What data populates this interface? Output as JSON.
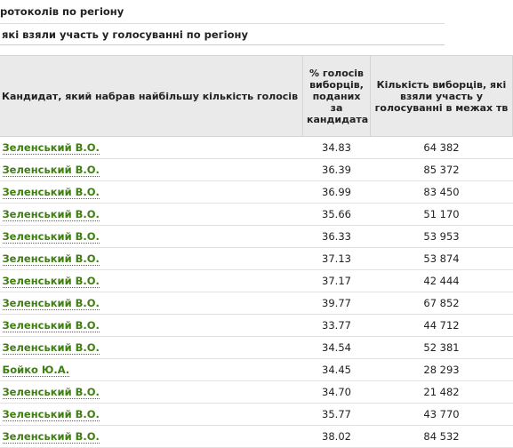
{
  "header": {
    "title": "ротоколів по регіону",
    "subtitle": "які взяли участь у голосуванні по регіону"
  },
  "table": {
    "columns": [
      "Кандидат, який набрав найбільшу кількість голосів",
      "% голосів виборців, поданих за кандидата",
      "Кількість виборців, які взяли участь у голосуванні в межах тв"
    ],
    "rows": [
      [
        "Зеленський В.О.",
        "34.83",
        "64 382"
      ],
      [
        "Зеленський В.О.",
        "36.39",
        "85 372"
      ],
      [
        "Зеленський В.О.",
        "36.99",
        "83 450"
      ],
      [
        "Зеленський В.О.",
        "35.66",
        "51 170"
      ],
      [
        "Зеленський В.О.",
        "36.33",
        "53 953"
      ],
      [
        "Зеленський В.О.",
        "37.13",
        "53 874"
      ],
      [
        "Зеленський В.О.",
        "37.17",
        "42 444"
      ],
      [
        "Зеленський В.О.",
        "39.77",
        "67 852"
      ],
      [
        "Зеленський В.О.",
        "33.77",
        "44 712"
      ],
      [
        "Зеленський В.О.",
        "34.54",
        "52 381"
      ],
      [
        "Бойко Ю.А.",
        "34.45",
        "28 293"
      ],
      [
        "Зеленський В.О.",
        "34.70",
        "21 482"
      ],
      [
        "Зеленський В.О.",
        "35.77",
        "43 770"
      ],
      [
        "Зеленський В.О.",
        "38.02",
        "84 532"
      ]
    ]
  }
}
